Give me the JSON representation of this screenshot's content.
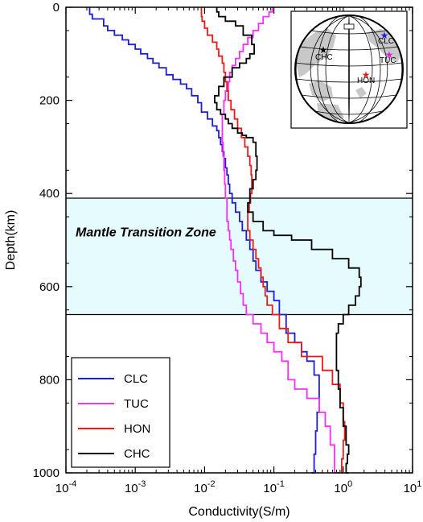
{
  "chart_data": {
    "type": "line",
    "title": "",
    "xlabel": "Conductivity(S/m)",
    "ylabel": "Depth(km)",
    "xscale": "log",
    "xlim": [
      0.0001,
      10
    ],
    "ylim": [
      0,
      1000
    ],
    "y_inverted": true,
    "x_tick_values": [
      0.0001,
      0.001,
      0.01,
      0.1,
      1,
      10
    ],
    "x_tick_labels": [
      {
        "base": "10",
        "exp": "-4"
      },
      {
        "base": "10",
        "exp": "-3"
      },
      {
        "base": "10",
        "exp": "-2"
      },
      {
        "base": "10",
        "exp": "-1"
      },
      {
        "base": "10",
        "exp": "0"
      },
      {
        "base": "10",
        "exp": "1"
      }
    ],
    "y_ticks": [
      0,
      200,
      400,
      600,
      800,
      1000
    ],
    "y_tick_labels": [
      "0",
      "200",
      "400",
      "600",
      "800",
      "1000"
    ],
    "legend_position": "bottom-left",
    "transition_zone": {
      "label": "Mantle Transition Zone",
      "top": 410,
      "bottom": 660,
      "color": "#e6fbfd"
    },
    "series": [
      {
        "name": "CLC",
        "color": "#1d1dd6",
        "x": [
          0.00022,
          0.00024,
          0.00035,
          0.0004,
          0.0005,
          0.00065,
          0.0008,
          0.001,
          0.0012,
          0.0015,
          0.0018,
          0.0022,
          0.0028,
          0.0035,
          0.0045,
          0.0055,
          0.0065,
          0.008,
          0.009,
          0.011,
          0.013,
          0.015,
          0.016,
          0.017,
          0.018,
          0.019,
          0.02,
          0.021,
          0.022,
          0.023,
          0.025,
          0.028,
          0.032,
          0.035,
          0.04,
          0.045,
          0.05,
          0.055,
          0.065,
          0.08,
          0.1,
          0.12,
          0.15,
          0.2,
          0.25,
          0.3,
          0.38,
          0.45,
          0.42,
          0.4,
          0.38,
          0.35
        ],
        "y": [
          0,
          15,
          25,
          40,
          50,
          60,
          70,
          80,
          90,
          100,
          110,
          120,
          130,
          145,
          155,
          165,
          175,
          190,
          205,
          225,
          240,
          255,
          265,
          280,
          295,
          310,
          325,
          345,
          360,
          380,
          400,
          420,
          440,
          460,
          480,
          500,
          520,
          545,
          565,
          590,
          610,
          630,
          660,
          700,
          720,
          740,
          760,
          790,
          870,
          910,
          960,
          1000
        ]
      },
      {
        "name": "TUC",
        "color": "#ff2bff",
        "x": [
          0.095,
          0.085,
          0.07,
          0.06,
          0.05,
          0.042,
          0.036,
          0.032,
          0.028,
          0.025,
          0.023,
          0.022,
          0.02,
          0.019,
          0.018,
          0.018,
          0.0185,
          0.019,
          0.0195,
          0.02,
          0.021,
          0.021,
          0.022,
          0.023,
          0.024,
          0.026,
          0.028,
          0.03,
          0.033,
          0.036,
          0.04,
          0.05,
          0.065,
          0.08,
          0.1,
          0.13,
          0.16,
          0.2,
          0.3,
          0.45,
          0.55,
          0.65,
          0.75,
          0.9
        ],
        "y": [
          0,
          10,
          20,
          35,
          50,
          65,
          80,
          95,
          110,
          125,
          140,
          160,
          180,
          200,
          230,
          260,
          290,
          320,
          350,
          380,
          410,
          440,
          460,
          480,
          500,
          520,
          545,
          565,
          590,
          615,
          640,
          660,
          680,
          700,
          720,
          740,
          760,
          800,
          820,
          840,
          870,
          900,
          940,
          1000
        ]
      },
      {
        "name": "HON",
        "color": "#ee1a1a",
        "x": [
          0.009,
          0.0092,
          0.01,
          0.011,
          0.013,
          0.015,
          0.016,
          0.018,
          0.019,
          0.02,
          0.021,
          0.022,
          0.024,
          0.027,
          0.03,
          0.034,
          0.038,
          0.042,
          0.045,
          0.047,
          0.048,
          0.048,
          0.046,
          0.044,
          0.042,
          0.042,
          0.045,
          0.05,
          0.055,
          0.06,
          0.065,
          0.07,
          0.075,
          0.08,
          0.095,
          0.12,
          0.16,
          0.25,
          0.5,
          0.7,
          0.9,
          1.0,
          1.05,
          1.0,
          0.95,
          1.0
        ],
        "y": [
          0,
          20,
          30,
          45,
          60,
          75,
          90,
          105,
          120,
          140,
          160,
          180,
          200,
          220,
          240,
          260,
          280,
          300,
          320,
          340,
          360,
          380,
          400,
          420,
          440,
          460,
          480,
          500,
          520,
          540,
          560,
          580,
          600,
          620,
          640,
          660,
          690,
          720,
          750,
          780,
          810,
          850,
          890,
          930,
          970,
          1000
        ]
      },
      {
        "name": "CHC",
        "color": "#000000",
        "x": [
          0.015,
          0.016,
          0.02,
          0.028,
          0.036,
          0.048,
          0.052,
          0.045,
          0.04,
          0.032,
          0.025,
          0.019,
          0.016,
          0.014,
          0.015,
          0.017,
          0.02,
          0.022,
          0.025,
          0.03,
          0.035,
          0.04,
          0.05,
          0.055,
          0.057,
          0.055,
          0.05,
          0.045,
          0.042,
          0.05,
          0.07,
          0.1,
          0.18,
          0.35,
          0.7,
          1.2,
          1.7,
          1.8,
          1.7,
          1.5,
          1.2,
          1.0,
          0.85,
          0.8,
          0.8,
          0.85,
          0.9,
          1.0,
          1.1,
          1.2,
          1.15,
          1.1,
          1.2
        ],
        "y": [
          0,
          10,
          20,
          30,
          40,
          60,
          80,
          100,
          110,
          120,
          130,
          150,
          170,
          190,
          205,
          220,
          230,
          240,
          250,
          260,
          270,
          275,
          280,
          290,
          320,
          350,
          370,
          390,
          420,
          440,
          460,
          480,
          490,
          500,
          520,
          540,
          560,
          580,
          600,
          620,
          640,
          660,
          680,
          700,
          740,
          780,
          820,
          860,
          900,
          940,
          960,
          980,
          1000
        ]
      }
    ],
    "inset_map": {
      "stations": [
        {
          "name": "CLC",
          "color": "#2020e0"
        },
        {
          "name": "TUC",
          "color": "#e020e0"
        },
        {
          "name": "HON",
          "color": "#e02020"
        },
        {
          "name": "CHC",
          "color": "#000000"
        }
      ]
    }
  }
}
